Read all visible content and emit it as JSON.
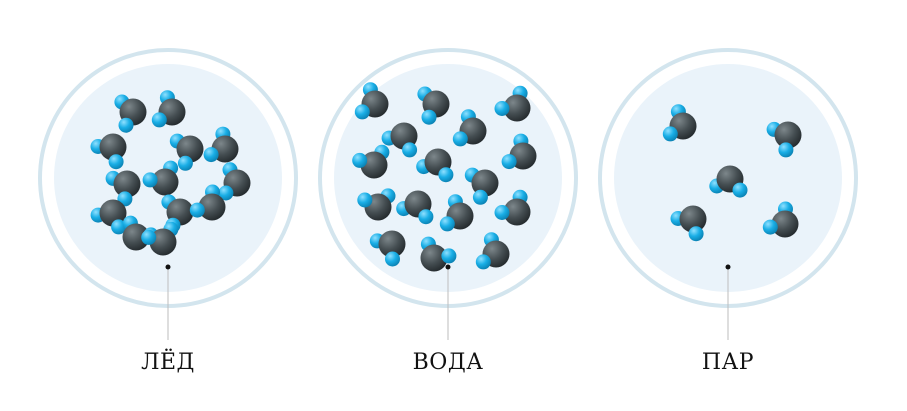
{
  "panels": [
    {
      "label": "ЛЁД",
      "state": "ice"
    },
    {
      "label": "ВОДА",
      "state": "water"
    },
    {
      "label": "ПАР",
      "state": "vapor"
    }
  ],
  "colors": {
    "oxygen": "#3c4548",
    "hydrogen": "#16a7de",
    "ring": "#d5e6ef",
    "disc": "#eaf3fa",
    "leader": "#bdbdbd",
    "dot": "#111111"
  },
  "icons": {
    "molecule": "water-molecule-icon"
  }
}
